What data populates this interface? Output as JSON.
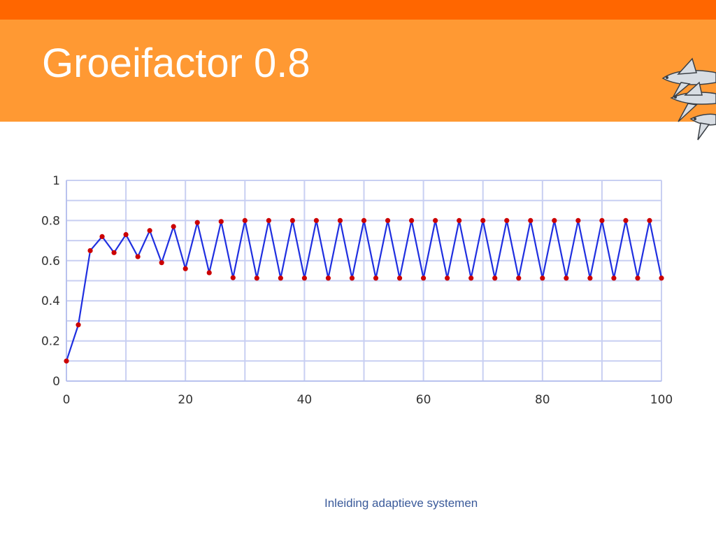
{
  "slide": {
    "title": "Groeifactor 0.8",
    "footer": "Inleiding adaptieve systemen",
    "logo_icon": "flying-fish-icon"
  },
  "colors": {
    "top_stripe": "#ff6600",
    "header_band": "#ff9933",
    "line": "#1f2fe0",
    "marker": "#cc0000",
    "grid": "#c8cff2"
  },
  "chart_data": {
    "type": "line",
    "xlim": [
      0,
      100
    ],
    "ylim": [
      0,
      1
    ],
    "xticks": [
      "0",
      "20",
      "40",
      "60",
      "80",
      "100"
    ],
    "yticks": [
      "0",
      "0.2",
      "0.4",
      "0.6",
      "0.8",
      "1"
    ],
    "x_grid_step": 10,
    "y_grid_step": 0.1,
    "grid": true,
    "x_step": 2,
    "series": [
      {
        "values": [
          0.1,
          0.28,
          0.65,
          0.72,
          0.64,
          0.73,
          0.62,
          0.75,
          0.59,
          0.77,
          0.56,
          0.79,
          0.54,
          0.795,
          0.515,
          0.8,
          0.513,
          0.8,
          0.513,
          0.8,
          0.513,
          0.8,
          0.513,
          0.8,
          0.513,
          0.8,
          0.513,
          0.8,
          0.513,
          0.8,
          0.513,
          0.8,
          0.513,
          0.8,
          0.513,
          0.8,
          0.513,
          0.8,
          0.513,
          0.8,
          0.513,
          0.8,
          0.513,
          0.8,
          0.513,
          0.8,
          0.513,
          0.8,
          0.513,
          0.8,
          0.513
        ]
      }
    ]
  }
}
